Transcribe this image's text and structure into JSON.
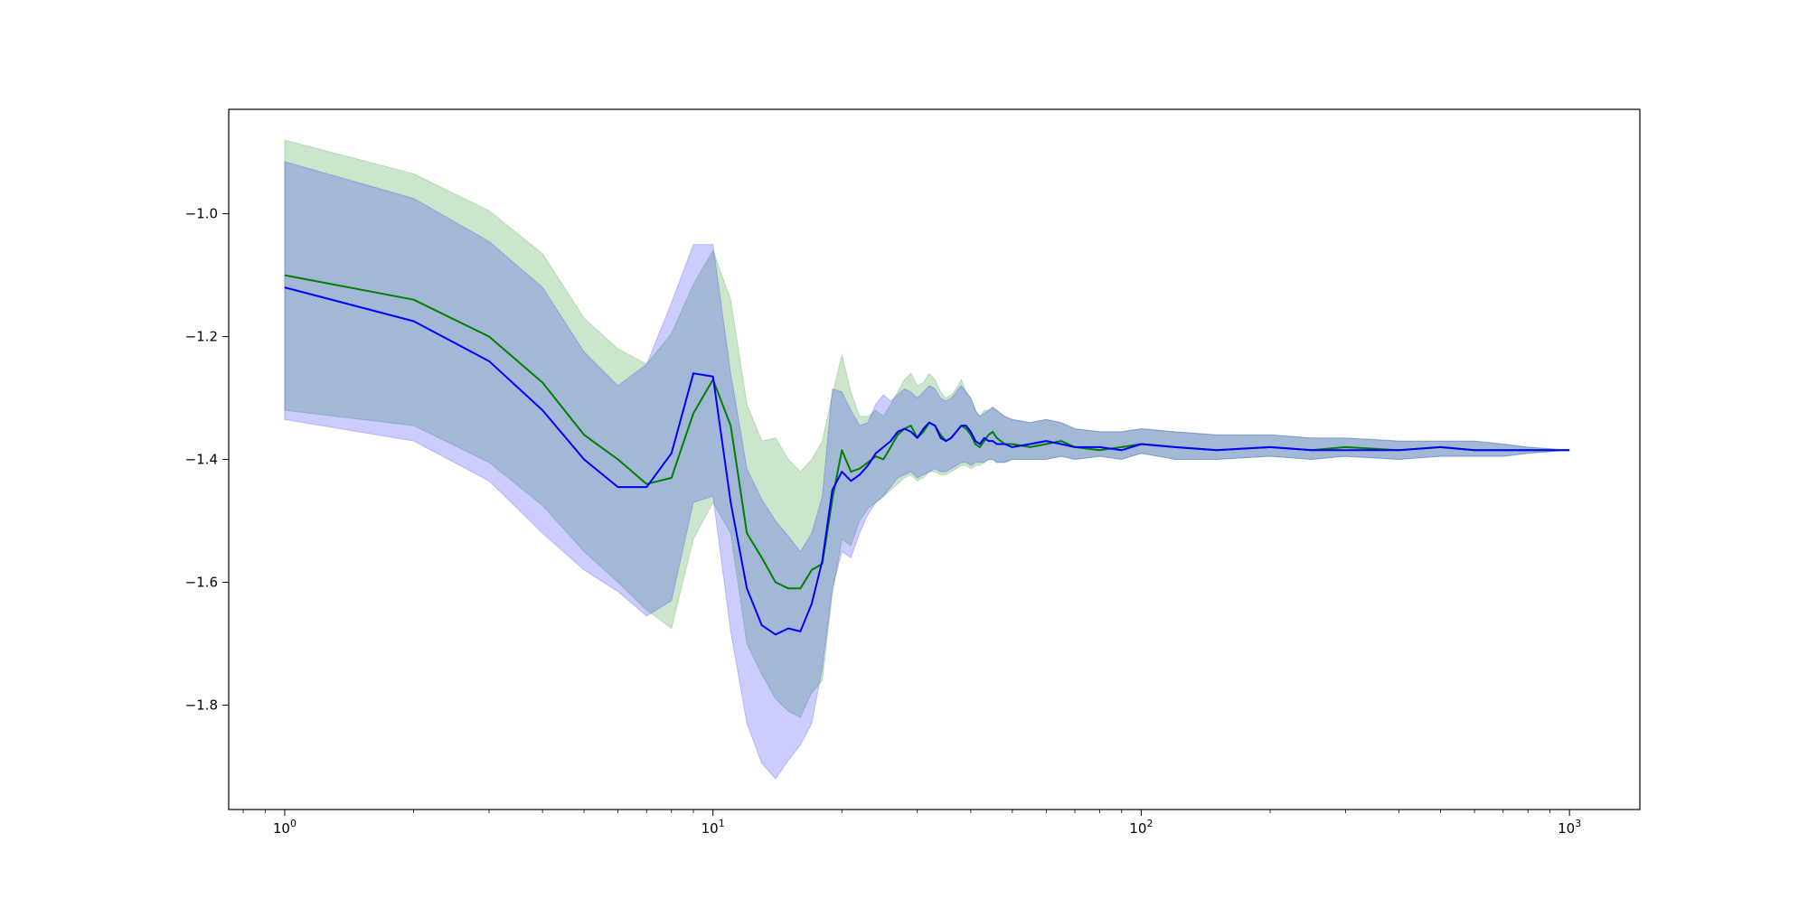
{
  "chart_data": {
    "type": "line",
    "title": "",
    "xlabel": "",
    "ylabel": "",
    "xscale": "log",
    "xlim": [
      0.74,
      1460
    ],
    "ylim": [
      -1.97,
      -0.83
    ],
    "grid": false,
    "legend": "none",
    "x_ticks": [
      {
        "value": 1,
        "base": "10",
        "exp": "0"
      },
      {
        "value": 10,
        "base": "10",
        "exp": "1"
      },
      {
        "value": 100,
        "base": "10",
        "exp": "2"
      },
      {
        "value": 1000,
        "base": "10",
        "exp": "3"
      }
    ],
    "y_ticks": [
      {
        "value": -1.0,
        "label": "−1.0"
      },
      {
        "value": -1.2,
        "label": "−1.2"
      },
      {
        "value": -1.4,
        "label": "−1.4"
      },
      {
        "value": -1.6,
        "label": "−1.6"
      },
      {
        "value": -1.8,
        "label": "−1.8"
      }
    ],
    "series": [
      {
        "color": "#008000",
        "band_color": "#008000",
        "x": [
          1,
          2,
          3,
          4,
          5,
          6,
          7,
          8,
          9,
          10,
          11,
          12,
          13,
          14,
          15,
          16,
          17,
          18,
          19,
          20,
          21,
          22,
          23,
          24,
          25,
          26,
          27,
          28,
          29,
          30,
          31,
          32,
          33,
          34,
          35,
          36,
          37,
          38,
          39,
          40,
          41,
          42,
          43,
          44,
          45,
          46,
          48,
          50,
          55,
          60,
          65,
          70,
          80,
          90,
          100,
          120,
          150,
          200,
          250,
          300,
          400,
          500,
          600,
          700,
          800,
          1000
        ],
        "y": [
          -1.1,
          -1.14,
          -1.2,
          -1.275,
          -1.36,
          -1.4,
          -1.44,
          -1.43,
          -1.325,
          -1.27,
          -1.345,
          -1.52,
          -1.56,
          -1.6,
          -1.61,
          -1.61,
          -1.58,
          -1.57,
          -1.465,
          -1.385,
          -1.42,
          -1.415,
          -1.405,
          -1.395,
          -1.4,
          -1.38,
          -1.36,
          -1.35,
          -1.345,
          -1.365,
          -1.355,
          -1.34,
          -1.345,
          -1.36,
          -1.37,
          -1.365,
          -1.355,
          -1.345,
          -1.35,
          -1.36,
          -1.375,
          -1.38,
          -1.37,
          -1.36,
          -1.355,
          -1.365,
          -1.375,
          -1.375,
          -1.38,
          -1.375,
          -1.37,
          -1.38,
          -1.385,
          -1.38,
          -1.375,
          -1.38,
          -1.385,
          -1.38,
          -1.385,
          -1.38,
          -1.385,
          -1.38,
          -1.385,
          -1.385,
          -1.385,
          -1.385
        ],
        "lower": [
          -1.32,
          -1.345,
          -1.405,
          -1.475,
          -1.55,
          -1.6,
          -1.645,
          -1.675,
          -1.53,
          -1.47,
          -1.52,
          -1.7,
          -1.75,
          -1.79,
          -1.81,
          -1.82,
          -1.78,
          -1.76,
          -1.62,
          -1.53,
          -1.54,
          -1.5,
          -1.48,
          -1.47,
          -1.46,
          -1.45,
          -1.44,
          -1.43,
          -1.425,
          -1.435,
          -1.43,
          -1.42,
          -1.42,
          -1.425,
          -1.425,
          -1.42,
          -1.415,
          -1.41,
          -1.41,
          -1.415,
          -1.41,
          -1.41,
          -1.405,
          -1.4,
          -1.4,
          -1.405,
          -1.405,
          -1.4,
          -1.4,
          -1.4,
          -1.395,
          -1.4,
          -1.395,
          -1.4,
          -1.39,
          -1.4,
          -1.4,
          -1.395,
          -1.4,
          -1.395,
          -1.4,
          -1.395,
          -1.395,
          -1.395,
          -1.39,
          -1.385
        ],
        "upper": [
          -0.88,
          -0.935,
          -0.995,
          -1.065,
          -1.17,
          -1.22,
          -1.245,
          -1.195,
          -1.115,
          -1.06,
          -1.14,
          -1.31,
          -1.37,
          -1.365,
          -1.4,
          -1.42,
          -1.4,
          -1.37,
          -1.295,
          -1.23,
          -1.29,
          -1.33,
          -1.33,
          -1.32,
          -1.33,
          -1.31,
          -1.29,
          -1.27,
          -1.26,
          -1.28,
          -1.275,
          -1.26,
          -1.27,
          -1.29,
          -1.3,
          -1.295,
          -1.285,
          -1.27,
          -1.29,
          -1.3,
          -1.32,
          -1.33,
          -1.32,
          -1.32,
          -1.315,
          -1.32,
          -1.33,
          -1.335,
          -1.34,
          -1.335,
          -1.34,
          -1.35,
          -1.355,
          -1.355,
          -1.35,
          -1.355,
          -1.36,
          -1.36,
          -1.365,
          -1.365,
          -1.37,
          -1.37,
          -1.37,
          -1.375,
          -1.38,
          -1.385
        ]
      },
      {
        "color": "#0000ff",
        "band_color": "#0000ff",
        "x": [
          1,
          2,
          3,
          4,
          5,
          6,
          7,
          8,
          9,
          10,
          11,
          12,
          13,
          14,
          15,
          16,
          17,
          18,
          19,
          20,
          21,
          22,
          23,
          24,
          25,
          26,
          27,
          28,
          29,
          30,
          31,
          32,
          33,
          34,
          35,
          36,
          37,
          38,
          39,
          40,
          41,
          42,
          43,
          44,
          45,
          46,
          48,
          50,
          55,
          60,
          65,
          70,
          80,
          90,
          100,
          120,
          150,
          200,
          250,
          300,
          400,
          500,
          600,
          700,
          800,
          1000
        ],
        "y": [
          -1.12,
          -1.175,
          -1.24,
          -1.32,
          -1.4,
          -1.445,
          -1.445,
          -1.39,
          -1.26,
          -1.265,
          -1.47,
          -1.61,
          -1.67,
          -1.685,
          -1.675,
          -1.68,
          -1.635,
          -1.565,
          -1.45,
          -1.42,
          -1.435,
          -1.425,
          -1.41,
          -1.39,
          -1.38,
          -1.37,
          -1.355,
          -1.35,
          -1.355,
          -1.365,
          -1.35,
          -1.34,
          -1.345,
          -1.365,
          -1.37,
          -1.365,
          -1.355,
          -1.345,
          -1.345,
          -1.355,
          -1.37,
          -1.375,
          -1.365,
          -1.37,
          -1.37,
          -1.375,
          -1.375,
          -1.38,
          -1.375,
          -1.37,
          -1.375,
          -1.38,
          -1.38,
          -1.385,
          -1.375,
          -1.38,
          -1.385,
          -1.38,
          -1.385,
          -1.385,
          -1.385,
          -1.38,
          -1.385,
          -1.385,
          -1.385,
          -1.385
        ],
        "lower": [
          -1.335,
          -1.37,
          -1.435,
          -1.52,
          -1.58,
          -1.615,
          -1.655,
          -1.63,
          -1.47,
          -1.46,
          -1.68,
          -1.83,
          -1.895,
          -1.92,
          -1.89,
          -1.865,
          -1.83,
          -1.74,
          -1.61,
          -1.55,
          -1.56,
          -1.52,
          -1.49,
          -1.47,
          -1.46,
          -1.445,
          -1.43,
          -1.425,
          -1.42,
          -1.43,
          -1.425,
          -1.42,
          -1.415,
          -1.42,
          -1.42,
          -1.415,
          -1.41,
          -1.405,
          -1.405,
          -1.41,
          -1.405,
          -1.405,
          -1.405,
          -1.4,
          -1.4,
          -1.405,
          -1.405,
          -1.4,
          -1.4,
          -1.4,
          -1.395,
          -1.4,
          -1.395,
          -1.4,
          -1.39,
          -1.4,
          -1.4,
          -1.395,
          -1.4,
          -1.395,
          -1.4,
          -1.395,
          -1.395,
          -1.395,
          -1.39,
          -1.385
        ],
        "upper": [
          -0.915,
          -0.975,
          -1.045,
          -1.12,
          -1.225,
          -1.28,
          -1.245,
          -1.145,
          -1.05,
          -1.05,
          -1.26,
          -1.415,
          -1.465,
          -1.5,
          -1.525,
          -1.55,
          -1.52,
          -1.46,
          -1.285,
          -1.29,
          -1.32,
          -1.345,
          -1.34,
          -1.31,
          -1.295,
          -1.305,
          -1.295,
          -1.285,
          -1.29,
          -1.3,
          -1.29,
          -1.28,
          -1.285,
          -1.3,
          -1.305,
          -1.3,
          -1.29,
          -1.28,
          -1.29,
          -1.3,
          -1.32,
          -1.33,
          -1.325,
          -1.32,
          -1.315,
          -1.32,
          -1.33,
          -1.335,
          -1.34,
          -1.335,
          -1.34,
          -1.35,
          -1.355,
          -1.355,
          -1.35,
          -1.355,
          -1.36,
          -1.36,
          -1.365,
          -1.365,
          -1.37,
          -1.37,
          -1.37,
          -1.375,
          -1.38,
          -1.385
        ]
      }
    ]
  }
}
